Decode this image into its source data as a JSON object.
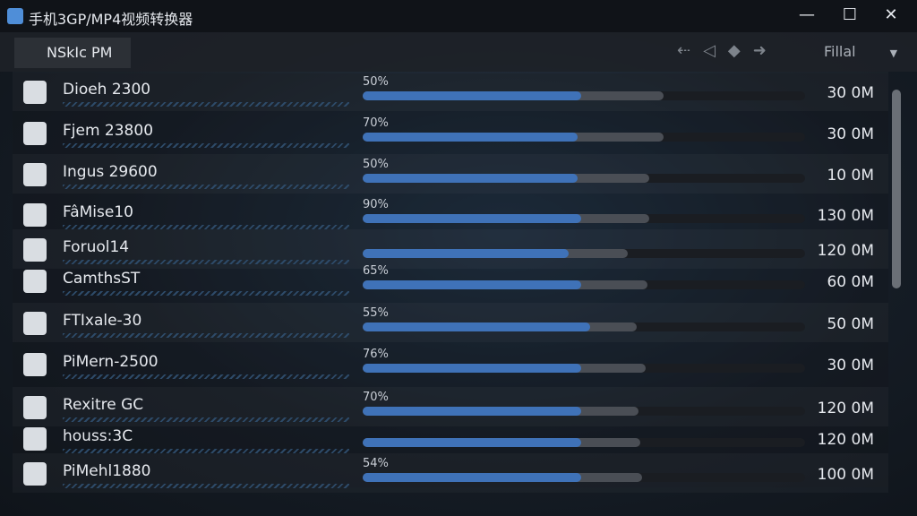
{
  "window": {
    "title": "手机3GP/MP4视频转换器"
  },
  "toolbar": {
    "tab": "NSkIc PM",
    "dropdown": "Fillal"
  },
  "rows": [
    {
      "name": "Dioeh 2300",
      "percent": "50%",
      "size": "30 0M"
    },
    {
      "name": "Fjem 23800",
      "percent": "70%",
      "size": "30 0M"
    },
    {
      "name": "Ingus 29600",
      "percent": "50%",
      "size": "10 0M"
    },
    {
      "name": "FâMise10",
      "percent": "90%",
      "size": "130 0M"
    },
    {
      "name": "Foruol14",
      "percent": null,
      "size": "120 0M"
    },
    {
      "name": "CamthsST",
      "percent": "65%",
      "size": "60 0M"
    },
    {
      "name": "FTIxale-30",
      "percent": "55%",
      "size": "50 0M"
    },
    {
      "name": "PiMern-2500",
      "percent": "76%",
      "size": "30 0M"
    },
    {
      "name": "Rexitre GC",
      "percent": "70%",
      "size": "120 0M"
    },
    {
      "name": "houss:3C",
      "percent": null,
      "size": "120 0M"
    },
    {
      "name": "PiMehl1880",
      "percent": "54%",
      "size": "100 0M"
    }
  ]
}
